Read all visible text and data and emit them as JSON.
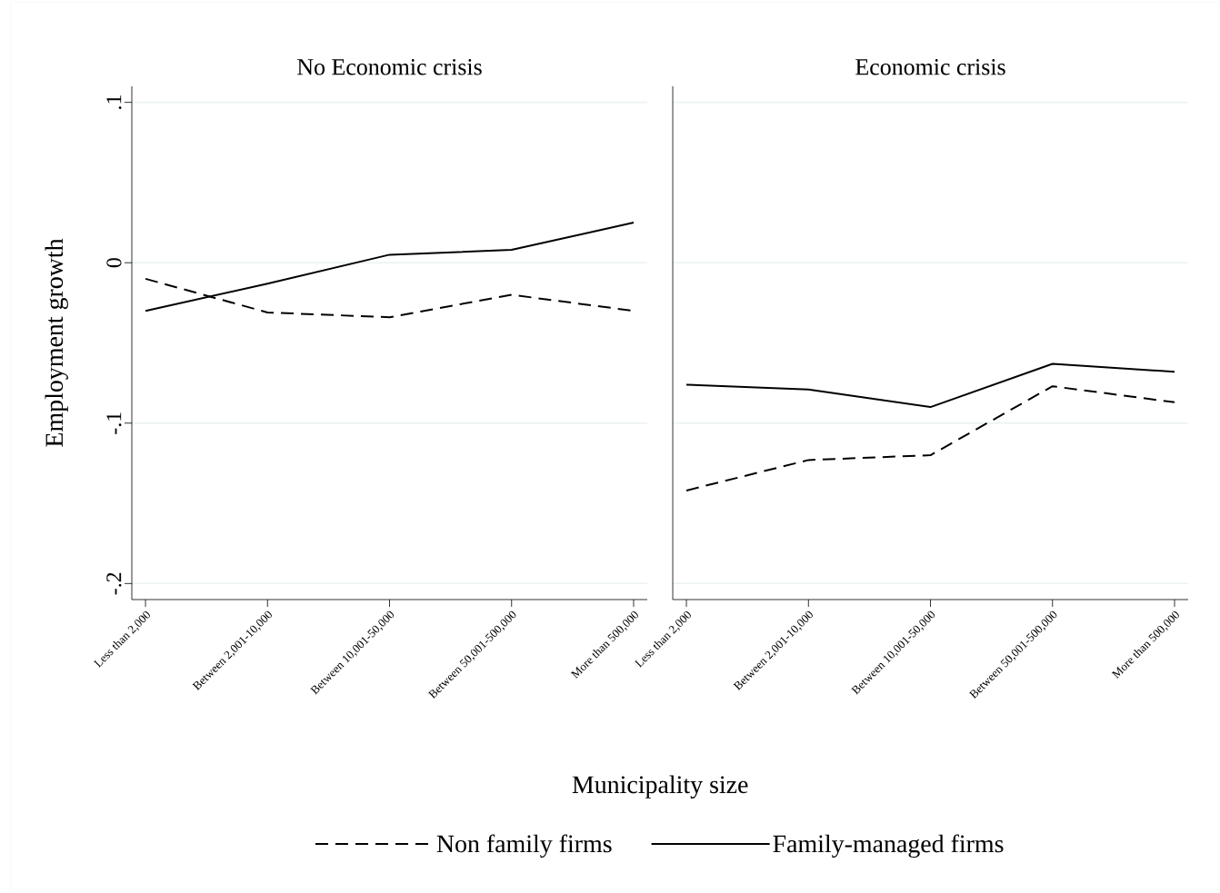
{
  "chart_data": [
    {
      "type": "line",
      "title": "No Economic crisis",
      "xlabel": "Municipality size",
      "ylabel": "Employment growth",
      "categories": [
        "Less than 2,000",
        "Between 2,001-10,000",
        "Between 10,001-50,000",
        "Between 50,001-500,000",
        "More than 500,000"
      ],
      "series": [
        {
          "name": "Non family firms",
          "color": "#000000",
          "line_style": "dashed",
          "values": [
            -0.01,
            -0.031,
            -0.034,
            -0.02,
            -0.03
          ]
        },
        {
          "name": "Family-managed firms",
          "color": "#000000",
          "line_style": "solid",
          "values": [
            -0.03,
            -0.013,
            0.005,
            0.008,
            0.025
          ]
        }
      ],
      "ylim": [
        -0.21,
        0.11
      ],
      "yticks": [
        {
          "value": -0.2,
          "label": "-.2"
        },
        {
          "value": -0.1,
          "label": "-.1"
        },
        {
          "value": 0,
          "label": "0"
        },
        {
          "value": 0.1,
          "label": ".1"
        }
      ],
      "grid": "y",
      "legend": "bottom",
      "marker": "none"
    },
    {
      "type": "line",
      "title": "Economic crisis",
      "categories": [
        "Less than 2,000",
        "Between 2,001-10,000",
        "Between 10,001-50,000",
        "Between 50,001-500,000",
        "More than 500,000"
      ],
      "series": [
        {
          "color": "#000000",
          "line_style": "dashed",
          "values": [
            -0.142,
            -0.123,
            -0.12,
            -0.077,
            -0.087
          ]
        },
        {
          "color": "#000000",
          "line_style": "solid",
          "values": [
            -0.076,
            -0.079,
            -0.09,
            -0.063,
            -0.068
          ]
        }
      ],
      "ylim": [
        -0.21,
        0.11
      ],
      "yticks": [
        {
          "value": -0.2,
          "label": null
        },
        {
          "value": -0.1,
          "label": null
        },
        {
          "value": 0,
          "label": null
        },
        {
          "value": 0.1,
          "label": null
        }
      ],
      "grid": "y",
      "tick_labels": "x",
      "marker": "none"
    }
  ]
}
